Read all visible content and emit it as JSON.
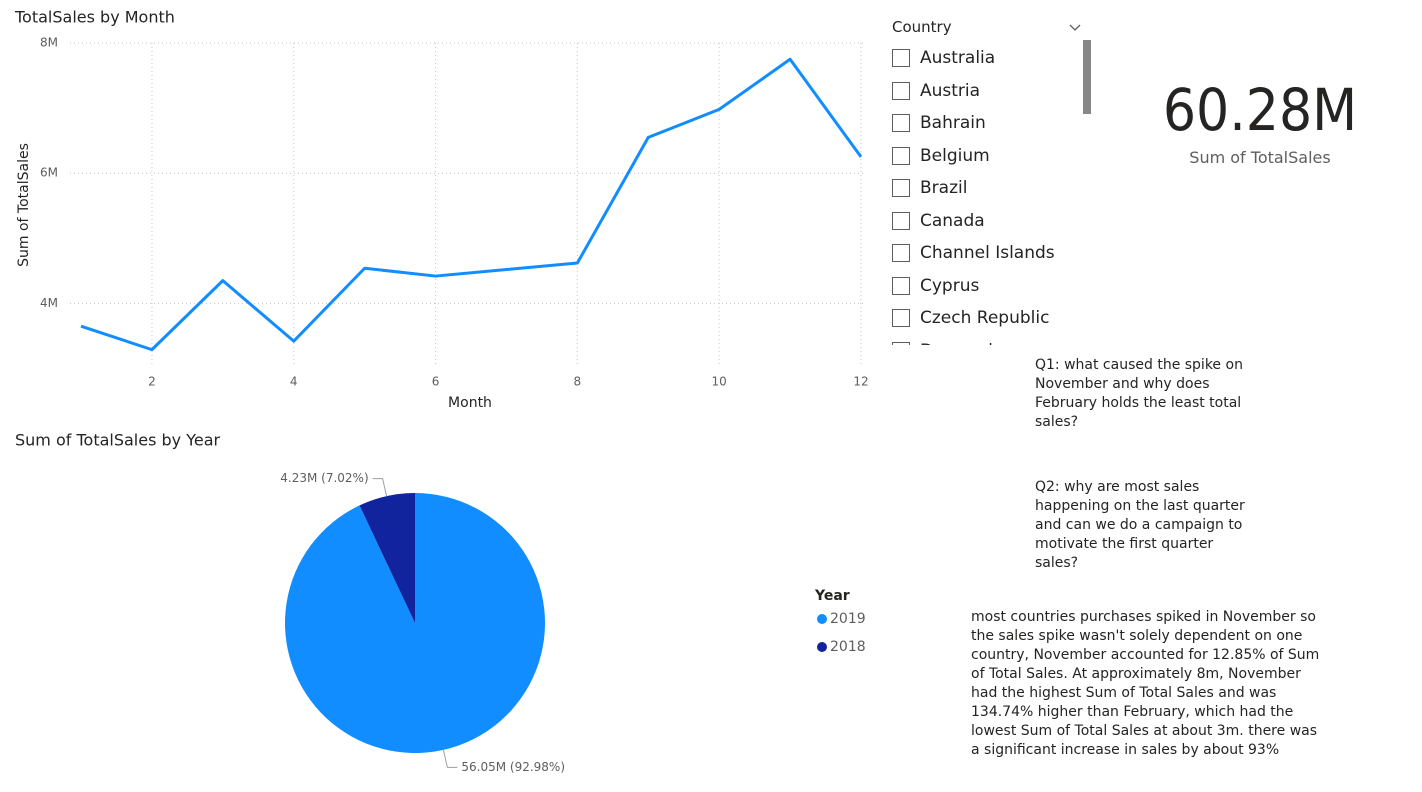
{
  "chart_data": [
    {
      "type": "line",
      "title": "TotalSales by Month",
      "x_label": "Month",
      "y_label": "Sum of TotalSales",
      "x": [
        1,
        2,
        3,
        4,
        5,
        6,
        7,
        8,
        9,
        10,
        11,
        12
      ],
      "values": [
        3650000,
        3290000,
        4350000,
        3420000,
        4540000,
        4420000,
        4520000,
        4620000,
        6550000,
        6980000,
        7750000,
        6250000
      ],
      "color": "#118dff",
      "xlim": [
        1,
        12
      ],
      "xticks": [
        2,
        4,
        6,
        8,
        10,
        12
      ],
      "ylim": [
        3100000,
        8000000
      ],
      "yticks": [
        {
          "value": 4000000,
          "label": "4M"
        },
        {
          "value": 6000000,
          "label": "6M"
        },
        {
          "value": 8000000,
          "label": "8M"
        }
      ],
      "grid": true
    },
    {
      "type": "pie",
      "title": "Sum of TotalSales by Year",
      "legend_title": "Year",
      "categories": [
        "2019",
        "2018"
      ],
      "values": [
        56050000,
        4230000
      ],
      "value_labels": [
        "56.05M (92.98%)",
        "4.23M (7.02%)"
      ],
      "colors": [
        "#118dff",
        "#12239e"
      ]
    }
  ],
  "slicer": {
    "title": "Country",
    "items": [
      "Australia",
      "Austria",
      "Bahrain",
      "Belgium",
      "Brazil",
      "Canada",
      "Channel Islands",
      "Cyprus",
      "Czech Republic",
      "Denmark"
    ]
  },
  "card": {
    "value": "60.28M",
    "label": "Sum of TotalSales"
  },
  "notes": {
    "q1": "Q1: what caused the spike on November and why does February holds the least total sales?",
    "q2": "Q2: why are most sales happening on the last quarter and can we do a campaign to motivate the first quarter sales?",
    "insight": "most countries purchases spiked in November so the sales spike wasn't solely dependent on one country, November accounted for 12.85% of Sum of Total Sales. At approximately 8m, November had the highest Sum of Total Sales and was 134.74% higher than February, which had the lowest Sum of Total Sales at about 3m. there was a significant increase in sales by about 93%"
  }
}
